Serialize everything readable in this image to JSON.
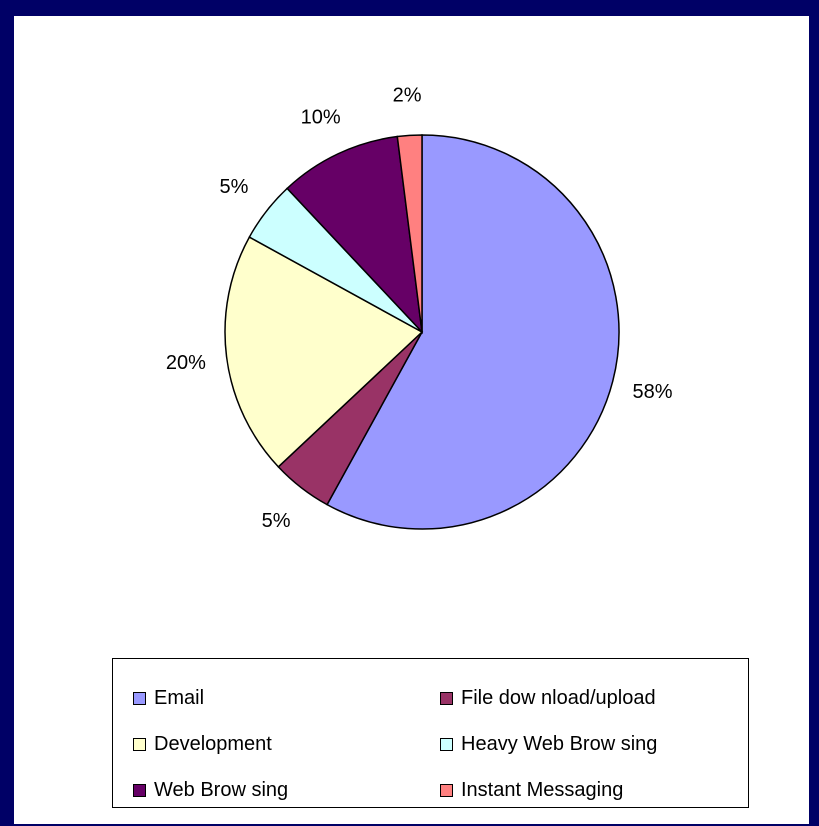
{
  "chart_data": {
    "type": "pie",
    "slices": [
      {
        "label": "Email",
        "value": 58,
        "value_label": "58%",
        "color": "#9999FF"
      },
      {
        "label": "File dow nload/upload",
        "value": 5,
        "value_label": "5%",
        "color": "#993366"
      },
      {
        "label": "Development",
        "value": 20,
        "value_label": "20%",
        "color": "#FFFFCC"
      },
      {
        "label": "Heavy Web Brow sing",
        "value": 5,
        "value_label": "5%",
        "color": "#CCFFFF"
      },
      {
        "label": "Web Brow sing",
        "value": 10,
        "value_label": "10%",
        "color": "#660066"
      },
      {
        "label": "Instant Messaging",
        "value": 2,
        "value_label": "2%",
        "color": "#FF8080"
      }
    ],
    "legend_position": "bottom",
    "background_color": "#000066"
  }
}
